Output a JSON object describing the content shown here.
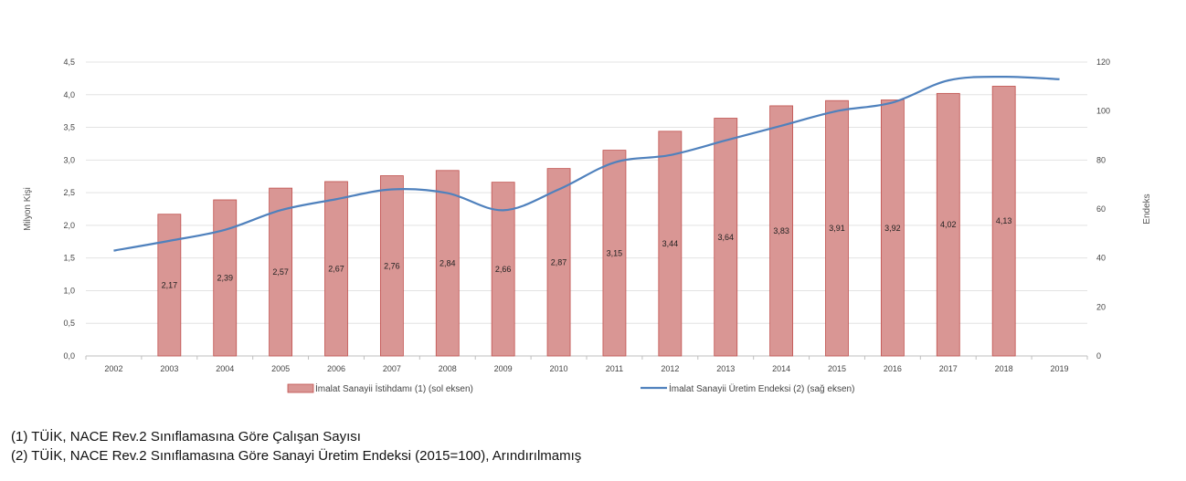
{
  "chart_data": {
    "type": "bar",
    "categories": [
      "2002",
      "2003",
      "2004",
      "2005",
      "2006",
      "2007",
      "2008",
      "2009",
      "2010",
      "2011",
      "2012",
      "2013",
      "2014",
      "2015",
      "2016",
      "2017",
      "2018",
      "2019"
    ],
    "series": [
      {
        "name": "İmalat Sanayii İstihdamı (1) (sol eksen)",
        "type": "bar",
        "axis": "left",
        "color": "#d99694",
        "values": [
          null,
          2.17,
          2.39,
          2.57,
          2.67,
          2.76,
          2.84,
          2.66,
          2.87,
          3.15,
          3.44,
          3.64,
          3.83,
          3.91,
          3.92,
          4.02,
          4.13,
          null
        ],
        "labels": [
          "",
          "2,17",
          "2,39",
          "2,57",
          "2,67",
          "2,76",
          "2,84",
          "2,66",
          "2,87",
          "3,15",
          "3,44",
          "3,64",
          "3,83",
          "3,91",
          "3,92",
          "4,02",
          "4,13",
          ""
        ]
      },
      {
        "name": "İmalat Sanayii Üretim Endeksi (2) (sağ eksen)",
        "type": "line",
        "axis": "right",
        "color": "#4f81bd",
        "values": [
          43,
          47,
          51.5,
          59.5,
          64,
          68,
          66.5,
          59.5,
          68,
          79,
          82,
          88,
          94,
          100,
          103.5,
          112.5,
          114,
          113
        ]
      }
    ],
    "ylabel": "Milyon Kişi",
    "y2label": "Endeks",
    "ylim": [
      0,
      4.5
    ],
    "y2lim": [
      0,
      120
    ],
    "yticks": [
      "0,0",
      "0,5",
      "1,0",
      "1,5",
      "2,0",
      "2,5",
      "3,0",
      "3,5",
      "4,0",
      "4,5"
    ],
    "y2ticks": [
      "0",
      "20",
      "40",
      "60",
      "80",
      "100",
      "120"
    ],
    "grid": true,
    "legend": "bottom"
  },
  "footnotes": [
    "(1) TÜİK, NACE Rev.2 Sınıflamasına Göre Çalışan Sayısı",
    "(2) TÜİK, NACE Rev.2 Sınıflamasına Göre Sanayi Üretim Endeksi (2015=100), Arındırılmamış"
  ]
}
